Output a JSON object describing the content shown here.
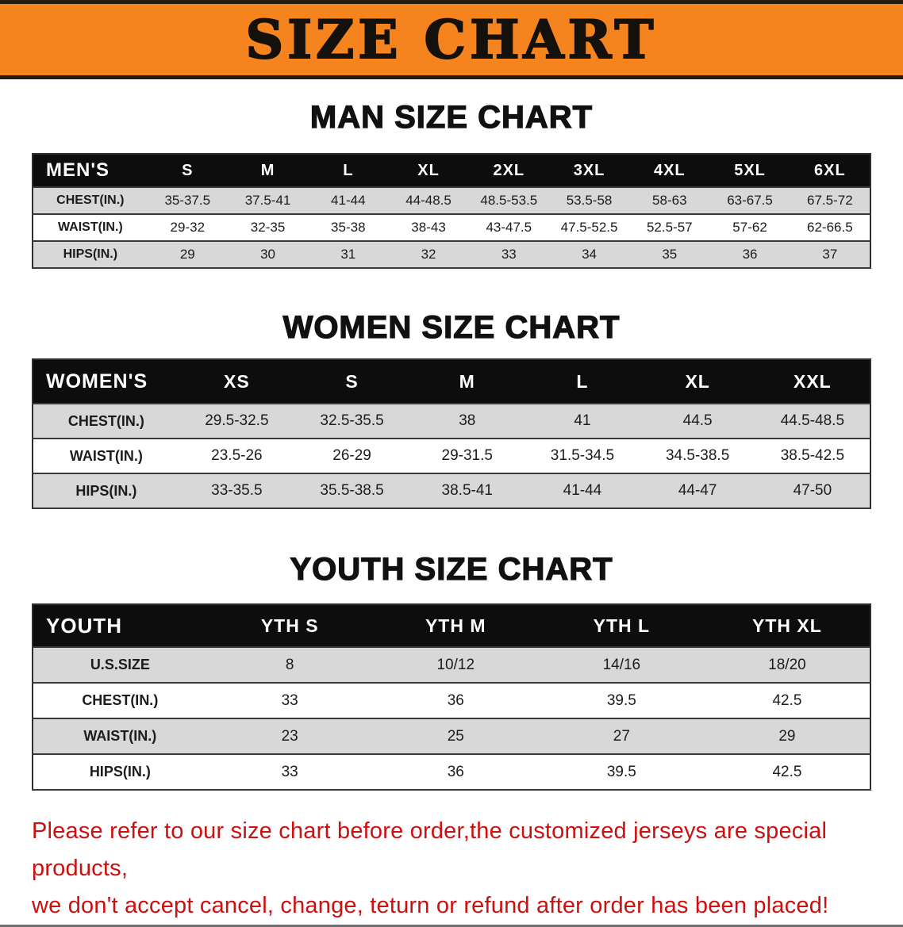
{
  "banner": {
    "title": "SIZE CHART",
    "bg_color": "#f5831e",
    "text_color": "#14100b"
  },
  "men": {
    "heading": "MAN SIZE CHART",
    "header": [
      "MEN'S",
      "S",
      "M",
      "L",
      "XL",
      "2XL",
      "3XL",
      "4XL",
      "5XL",
      "6XL"
    ],
    "rows": [
      [
        "CHEST(IN.)",
        "35-37.5",
        "37.5-41",
        "41-44",
        "44-48.5",
        "48.5-53.5",
        "53.5-58",
        "58-63",
        "63-67.5",
        "67.5-72"
      ],
      [
        "WAIST(IN.)",
        "29-32",
        "32-35",
        "35-38",
        "38-43",
        "43-47.5",
        "47.5-52.5",
        "52.5-57",
        "57-62",
        "62-66.5"
      ],
      [
        "HIPS(IN.)",
        "29",
        "30",
        "31",
        "32",
        "33",
        "34",
        "35",
        "36",
        "37"
      ]
    ]
  },
  "women": {
    "heading": "WOMEN SIZE CHART",
    "header": [
      "WOMEN'S",
      "XS",
      "S",
      "M",
      "L",
      "XL",
      "XXL"
    ],
    "rows": [
      [
        "CHEST(IN.)",
        "29.5-32.5",
        "32.5-35.5",
        "38",
        "41",
        "44.5",
        "44.5-48.5"
      ],
      [
        "WAIST(IN.)",
        "23.5-26",
        "26-29",
        "29-31.5",
        "31.5-34.5",
        "34.5-38.5",
        "38.5-42.5"
      ],
      [
        "HIPS(IN.)",
        "33-35.5",
        "35.5-38.5",
        "38.5-41",
        "41-44",
        "44-47",
        "47-50"
      ]
    ]
  },
  "youth": {
    "heading": "YOUTH SIZE CHART",
    "header": [
      "YOUTH",
      "YTH S",
      "YTH M",
      "YTH L",
      "YTH XL"
    ],
    "rows": [
      [
        "U.S.SIZE",
        "8",
        "10/12",
        "14/16",
        "18/20"
      ],
      [
        "CHEST(IN.)",
        "33",
        "36",
        "39.5",
        "42.5"
      ],
      [
        "WAIST(IN.)",
        "23",
        "25",
        "27",
        "29"
      ],
      [
        "HIPS(IN.)",
        "33",
        "36",
        "39.5",
        "42.5"
      ]
    ]
  },
  "disclaimer": {
    "line1": "Please refer to our size chart before order,the customized jerseys are special products,",
    "line2": "we don't accept cancel, change, teturn or refund after order has been placed!",
    "text_color": "#cc1010"
  }
}
